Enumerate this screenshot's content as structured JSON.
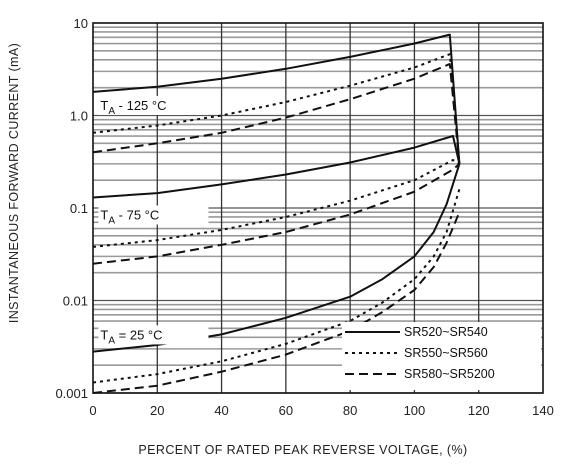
{
  "chart_data": {
    "type": "line",
    "title": "",
    "xlabel": "PERCENT OF RATED PEAK REVERSE VOLTAGE, (%)",
    "ylabel": "INSTANTANEOUS FORWARD CURRENT  (mA)",
    "xlim": [
      0,
      140
    ],
    "ylim": [
      0.001,
      10
    ],
    "y_scale": "log",
    "x_ticks": [
      "0",
      "20",
      "40",
      "60",
      "80",
      "100",
      "120",
      "140"
    ],
    "y_ticks": [
      "0.001",
      "0.01",
      "0.1",
      "1.0",
      "10"
    ],
    "grid": true,
    "legend_position": "bottom-right",
    "annotations": [
      {
        "base": "T",
        "sub": "A",
        "rest": " - 125 °C",
        "x": 2,
        "y": 1.3
      },
      {
        "base": "T",
        "sub": "A",
        "rest": " - 75 °C",
        "x": 2,
        "y": 0.085
      },
      {
        "base": "T",
        "sub": "A",
        "rest": " = 25 °C",
        "x": 2,
        "y": 0.0043
      }
    ],
    "legend": [
      {
        "name": "SR520~SR540",
        "style": "solid"
      },
      {
        "name": "SR550~SR560",
        "style": "dotted"
      },
      {
        "name": "SR580~SR5200",
        "style": "dashed"
      }
    ],
    "series": [
      {
        "name": "SR520~SR540",
        "temp": "125 °C",
        "style": "solid",
        "x": [
          0,
          20,
          40,
          60,
          80,
          100,
          111,
          114
        ],
        "y": [
          1.8,
          2.05,
          2.5,
          3.2,
          4.3,
          6.0,
          7.5,
          0.3
        ]
      },
      {
        "name": "SR550~SR560",
        "temp": "125 °C",
        "style": "dotted",
        "x": [
          0,
          20,
          40,
          60,
          80,
          100,
          111,
          114
        ],
        "y": [
          0.65,
          0.78,
          1.0,
          1.4,
          2.1,
          3.3,
          4.6,
          0.3
        ]
      },
      {
        "name": "SR580~SR5200",
        "temp": "125 °C",
        "style": "dashed",
        "x": [
          0,
          20,
          40,
          60,
          80,
          100,
          111,
          114
        ],
        "y": [
          0.4,
          0.5,
          0.65,
          0.95,
          1.5,
          2.5,
          3.6,
          0.3
        ]
      },
      {
        "name": "SR520~SR540",
        "temp": "75 °C",
        "style": "solid",
        "x": [
          0,
          20,
          40,
          60,
          80,
          100,
          112,
          114
        ],
        "y": [
          0.13,
          0.145,
          0.18,
          0.23,
          0.31,
          0.45,
          0.6,
          0.3
        ]
      },
      {
        "name": "SR550~SR560",
        "temp": "75 °C",
        "style": "dotted",
        "x": [
          0,
          20,
          40,
          60,
          80,
          100,
          112,
          114
        ],
        "y": [
          0.038,
          0.045,
          0.058,
          0.08,
          0.12,
          0.2,
          0.33,
          0.3
        ]
      },
      {
        "name": "SR580~SR5200",
        "temp": "75 °C",
        "style": "dashed",
        "x": [
          0,
          20,
          40,
          60,
          80,
          100,
          112,
          114
        ],
        "y": [
          0.025,
          0.03,
          0.04,
          0.055,
          0.085,
          0.15,
          0.26,
          0.3
        ]
      },
      {
        "name": "SR520~SR540",
        "temp": "25 °C",
        "style": "solid",
        "x": [
          0,
          20,
          40,
          60,
          80,
          90,
          100,
          106,
          110,
          114
        ],
        "y": [
          0.0028,
          0.0033,
          0.0043,
          0.0065,
          0.011,
          0.017,
          0.03,
          0.055,
          0.11,
          0.3
        ]
      },
      {
        "name": "SR550~SR560",
        "temp": "25 °C",
        "style": "dotted",
        "x": [
          0,
          20,
          40,
          60,
          80,
          90,
          100,
          106,
          110,
          114
        ],
        "y": [
          0.0013,
          0.0016,
          0.0022,
          0.0034,
          0.006,
          0.0095,
          0.017,
          0.03,
          0.055,
          0.16
        ]
      },
      {
        "name": "SR580~SR5200",
        "temp": "25 °C",
        "style": "dashed",
        "x": [
          0,
          20,
          40,
          60,
          80,
          90,
          100,
          106,
          110,
          114
        ],
        "y": [
          0.001,
          0.0012,
          0.0017,
          0.0026,
          0.0047,
          0.0075,
          0.013,
          0.023,
          0.042,
          0.09
        ]
      }
    ]
  }
}
